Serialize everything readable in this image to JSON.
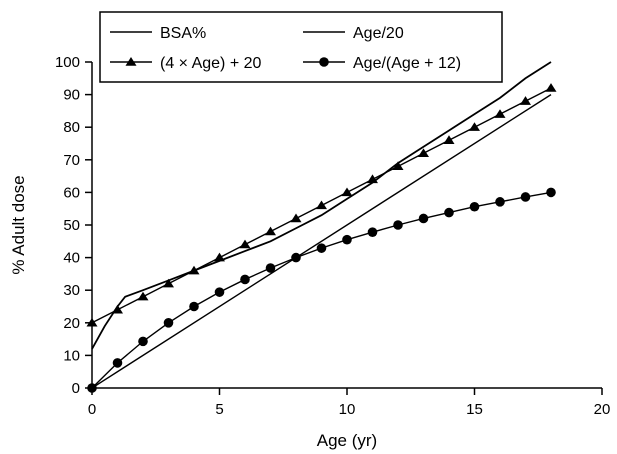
{
  "chart_data": {
    "type": "line",
    "title": "",
    "xlabel": "Age (yr)",
    "ylabel": "% Adult dose",
    "xlim": [
      0,
      20
    ],
    "ylim": [
      0,
      100
    ],
    "xticks": [
      0,
      5,
      10,
      15,
      20
    ],
    "yticks": [
      0,
      10,
      20,
      30,
      40,
      50,
      60,
      70,
      80,
      90,
      100
    ],
    "grid": false,
    "legend_position": "top",
    "series": [
      {
        "name": "BSA%",
        "marker": "none",
        "x": [
          0,
          0.5,
          1,
          1.3,
          2,
          3,
          4,
          5,
          6,
          7,
          8,
          9,
          10,
          11,
          12,
          13,
          14,
          15,
          16,
          17,
          18
        ],
        "y": [
          12,
          19,
          25,
          28,
          30,
          33,
          36,
          39,
          42,
          45,
          49,
          53,
          58,
          63,
          69,
          74,
          79,
          84,
          89,
          95,
          100
        ]
      },
      {
        "name": "Age/20",
        "marker": "none",
        "x": [
          0,
          18
        ],
        "y": [
          0,
          90
        ]
      },
      {
        "name": "(4 × Age) + 20",
        "marker": "triangle",
        "x": [
          0,
          1,
          2,
          3,
          4,
          5,
          6,
          7,
          8,
          9,
          10,
          11,
          12,
          13,
          14,
          15,
          16,
          17,
          18
        ],
        "y": [
          20,
          24,
          28,
          32,
          36,
          40,
          44,
          48,
          52,
          56,
          60,
          64,
          68,
          72,
          76,
          80,
          84,
          88,
          92
        ]
      },
      {
        "name": "Age/(Age + 12)",
        "marker": "circle",
        "x": [
          0,
          1,
          2,
          3,
          4,
          5,
          6,
          7,
          8,
          9,
          10,
          11,
          12,
          13,
          14,
          15,
          16,
          17,
          18
        ],
        "y": [
          0,
          7.7,
          14.3,
          20,
          25,
          29.4,
          33.3,
          36.8,
          40,
          42.9,
          45.5,
          47.8,
          50,
          52,
          53.8,
          55.6,
          57.1,
          58.6,
          60
        ]
      }
    ]
  }
}
